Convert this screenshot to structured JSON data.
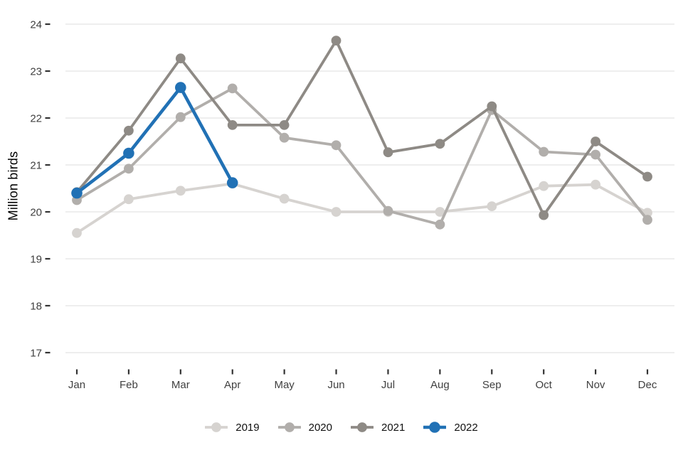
{
  "chart_data": {
    "type": "line",
    "title": "",
    "xlabel": "",
    "ylabel": "Million birds",
    "x_categories": [
      "Jan",
      "Feb",
      "Mar",
      "Apr",
      "May",
      "Jun",
      "Jul",
      "Aug",
      "Sep",
      "Oct",
      "Nov",
      "Dec"
    ],
    "y_ticks": [
      17,
      18,
      19,
      20,
      21,
      22,
      23,
      24
    ],
    "ylim": [
      17,
      24
    ],
    "grid": "horizontal-only",
    "legend_position": "bottom-center",
    "series": [
      {
        "name": "2019",
        "color": "#d6d3d0",
        "values": [
          19.55,
          20.27,
          20.45,
          20.6,
          20.28,
          20.0,
          20.0,
          20.0,
          20.12,
          20.55,
          20.58,
          19.98
        ]
      },
      {
        "name": "2020",
        "color": "#b1aeab",
        "values": [
          20.25,
          20.92,
          22.02,
          22.63,
          21.58,
          21.42,
          20.02,
          19.73,
          22.17,
          21.28,
          21.22,
          19.83
        ]
      },
      {
        "name": "2021",
        "color": "#8e8a85",
        "values": [
          20.42,
          21.73,
          23.27,
          21.85,
          21.85,
          23.65,
          21.27,
          21.45,
          22.25,
          19.93,
          21.5,
          20.75
        ]
      },
      {
        "name": "2022",
        "color": "#2171b5",
        "values": [
          20.4,
          21.25,
          22.65,
          20.62
        ]
      }
    ],
    "colors": {
      "gridline": "#e9e9e9",
      "tick_mark": "#333333",
      "axis_text": "#404040",
      "legend_text": "#111111"
    }
  }
}
